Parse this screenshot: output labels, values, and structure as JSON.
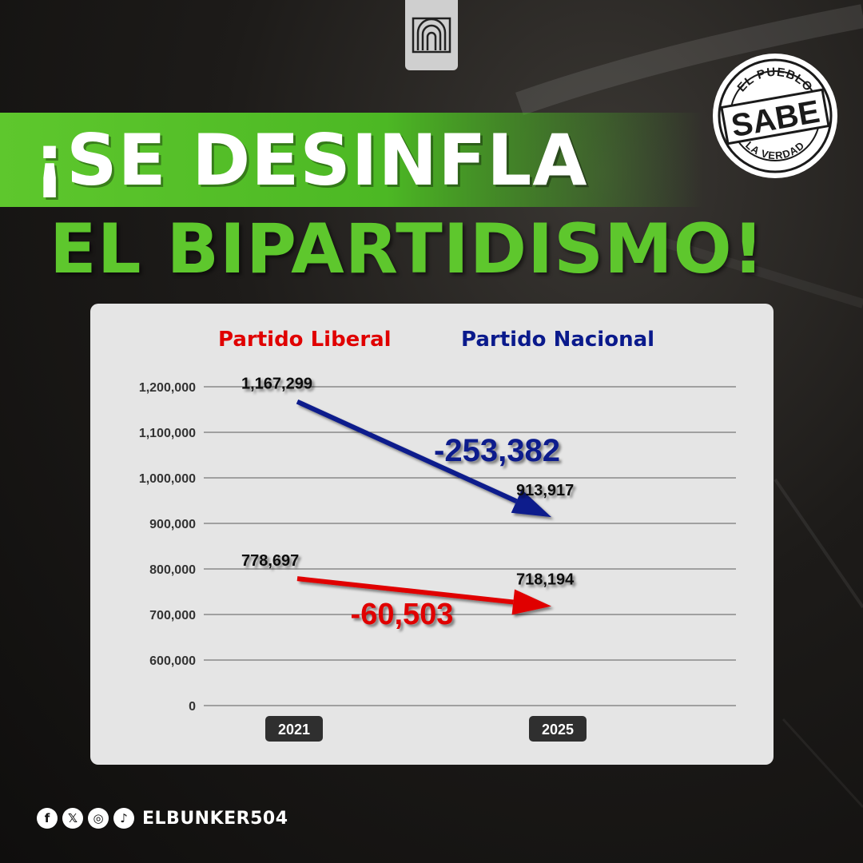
{
  "title": {
    "line1": "¡SE DESINFLA",
    "line2": "EL BIPARTIDISMO!"
  },
  "stamp": {
    "top_text": "EL PUEBLO",
    "main_text": "SABE",
    "bottom_text": "LA VERDAD"
  },
  "footer": {
    "handle": "ELBUNKER504",
    "icons": [
      "facebook-icon",
      "x-icon",
      "instagram-icon",
      "tiktok-icon"
    ]
  },
  "colors": {
    "green": "#5ec72d",
    "liberal": "#e00000",
    "nacional": "#0a1a8c"
  },
  "chart_data": {
    "type": "line",
    "x": [
      "2021",
      "2025"
    ],
    "series": [
      {
        "name": "Partido Liberal",
        "color": "#e00000",
        "values": [
          778697,
          718194
        ],
        "value_labels": [
          "778,697",
          "718,194"
        ],
        "change_label": "-60,503"
      },
      {
        "name": "Partido Nacional",
        "color": "#0a1a8c",
        "values": [
          1167299,
          913917
        ],
        "value_labels": [
          "1,167,299",
          "913,917"
        ],
        "change_label": "-253,382"
      }
    ],
    "y_ticks": [
      0,
      600000,
      700000,
      800000,
      900000,
      1000000,
      1100000,
      1200000
    ],
    "y_tick_labels": [
      "0",
      "600,000",
      "700,000",
      "800,000",
      "900,000",
      "1,000,000",
      "1,100,000",
      "1,200,000"
    ],
    "legend_position": "top",
    "grid": true
  }
}
